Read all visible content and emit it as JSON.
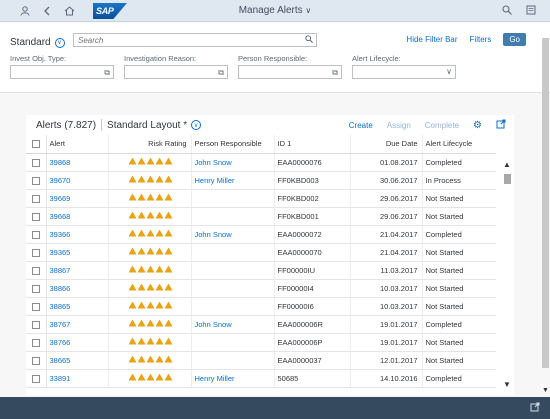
{
  "shell": {
    "title": "Manage Alerts",
    "logo": "SAP",
    "icons": [
      "user-icon",
      "back-icon",
      "home-icon",
      "search-icon",
      "notification-icon"
    ]
  },
  "filter": {
    "variant": "Standard",
    "search_placeholder": "Search",
    "hide_filter_bar": "Hide Filter Bar",
    "filters": "Filters",
    "go": "Go",
    "fields": [
      {
        "label": "Invest Obj. Type:",
        "type": "valuehelp"
      },
      {
        "label": "Investigation Reason:",
        "type": "valuehelp"
      },
      {
        "label": "Person Responsible:",
        "type": "valuehelp"
      },
      {
        "label": "Alert Lifecycle:",
        "type": "dropdown"
      }
    ]
  },
  "table": {
    "title": "Alerts (7.827)",
    "layout": "Standard Layout *",
    "actions": {
      "create": "Create",
      "assign": "Assign",
      "complete": "Complete"
    },
    "columns": [
      "Alert",
      "Risk Rating",
      "Person Responsible",
      "ID 1",
      "Due Date",
      "Alert Lifecycle"
    ],
    "rows": [
      {
        "alert": "39868",
        "rating": 5,
        "person": "John Snow",
        "id": "EAA0000076",
        "due": "01.08.2017",
        "status": "Completed"
      },
      {
        "alert": "39670",
        "rating": 5,
        "person": "Henry Miller",
        "id": "FF0KBD003",
        "due": "30.06.2017",
        "status": "In Process"
      },
      {
        "alert": "39669",
        "rating": 5,
        "person": "",
        "id": "FF0KBD002",
        "due": "29.06.2017",
        "status": "Not Started"
      },
      {
        "alert": "39668",
        "rating": 5,
        "person": "",
        "id": "FF0KBD001",
        "due": "29.06.2017",
        "status": "Not Started"
      },
      {
        "alert": "39366",
        "rating": 5,
        "person": "John Snow",
        "id": "EAA0000072",
        "due": "21.04.2017",
        "status": "Completed"
      },
      {
        "alert": "39365",
        "rating": 5,
        "person": "",
        "id": "EAA0000070",
        "due": "21.04.2017",
        "status": "Not Started"
      },
      {
        "alert": "38867",
        "rating": 5,
        "person": "",
        "id": "FF00000IU",
        "due": "11.03.2017",
        "status": "Not Started"
      },
      {
        "alert": "38866",
        "rating": 5,
        "person": "",
        "id": "FF00000I4",
        "due": "10.03.2017",
        "status": "Not Started"
      },
      {
        "alert": "38865",
        "rating": 5,
        "person": "",
        "id": "FF00000I6",
        "due": "10.03.2017",
        "status": "Not Started"
      },
      {
        "alert": "38767",
        "rating": 5,
        "person": "John Snow",
        "id": "EAA000006R",
        "due": "19.01.2017",
        "status": "Completed"
      },
      {
        "alert": "38766",
        "rating": 5,
        "person": "",
        "id": "EAA000006P",
        "due": "19.01.2017",
        "status": "Not Started"
      },
      {
        "alert": "38665",
        "rating": 5,
        "person": "",
        "id": "EAA0000037",
        "due": "12.01.2017",
        "status": "Not Started"
      },
      {
        "alert": "33891",
        "rating": 5,
        "person": "Henry Miller",
        "id": "50685",
        "due": "14.10.2016",
        "status": "Completed"
      }
    ]
  },
  "colors": {
    "shell": "#dfe8f1",
    "link": "#0a6ed1",
    "warning": "#e9a316",
    "footer": "#354a5f"
  }
}
